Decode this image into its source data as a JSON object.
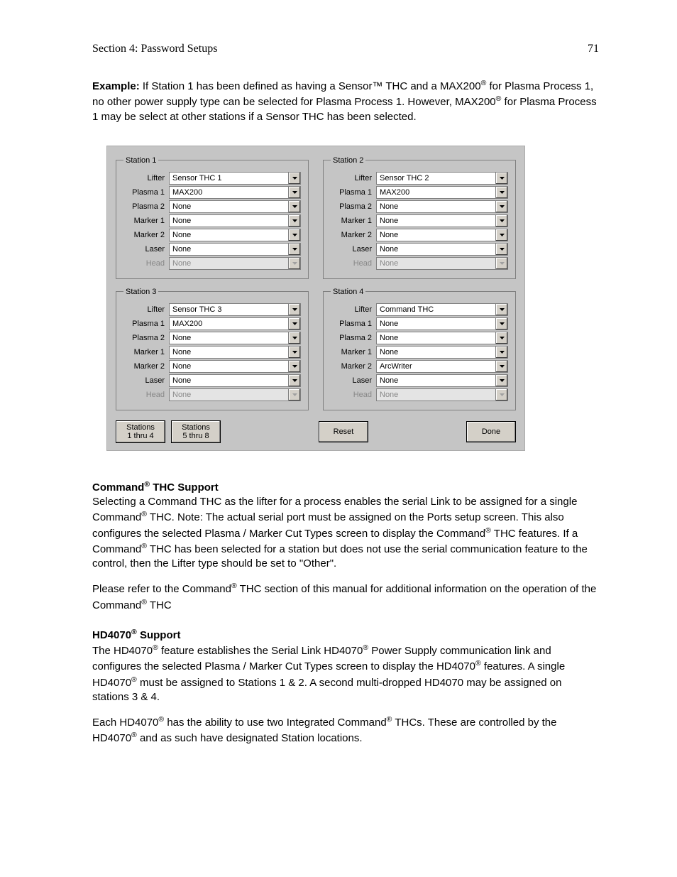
{
  "header": {
    "section": "Section 4: Password Setups",
    "page_number": "71"
  },
  "example": {
    "label": "Example:",
    "text_a": "If Station 1 has been defined as having a Sensor™ THC and a MAX200",
    "text_b": " for Plasma Process 1, no other power supply type can be selected for Plasma Process 1.  However, MAX200",
    "text_c": " for Plasma Process 1 may be select at other stations if a Sensor THC has been selected.",
    "reg": "®"
  },
  "dialog": {
    "field_labels": {
      "lifter": "Lifter",
      "plasma1": "Plasma 1",
      "plasma2": "Plasma 2",
      "marker1": "Marker 1",
      "marker2": "Marker 2",
      "laser": "Laser",
      "head": "Head"
    },
    "stations": [
      {
        "legend": "Station 1",
        "lifter": "Sensor THC 1",
        "plasma1": "MAX200",
        "plasma2": "None",
        "marker1": "None",
        "marker2": "None",
        "laser": "None",
        "head": "None"
      },
      {
        "legend": "Station 2",
        "lifter": "Sensor THC 2",
        "plasma1": "MAX200",
        "plasma2": "None",
        "marker1": "None",
        "marker2": "None",
        "laser": "None",
        "head": "None"
      },
      {
        "legend": "Station 3",
        "lifter": "Sensor THC 3",
        "plasma1": "MAX200",
        "plasma2": "None",
        "marker1": "None",
        "marker2": "None",
        "laser": "None",
        "head": "None"
      },
      {
        "legend": "Station 4",
        "lifter": "Command THC",
        "plasma1": "None",
        "plasma2": "None",
        "marker1": "None",
        "marker2": "ArcWriter",
        "laser": "None",
        "head": "None"
      }
    ],
    "buttons": {
      "stations_1_4_line1": "Stations",
      "stations_1_4_line2": "1 thru 4",
      "stations_5_8_line1": "Stations",
      "stations_5_8_line2": "5 thru 8",
      "reset": "Reset",
      "done": "Done"
    }
  },
  "commandSupport": {
    "title_a": "Command",
    "title_b": " THC Support",
    "p1a": "Selecting a Command THC as the lifter for a process enables the serial Link to be assigned for a single Command",
    "p1b": " THC.  Note: The actual serial port must be assigned on the Ports setup screen. This also configures the selected Plasma / Marker Cut Types screen to display the Command",
    "p1c": " THC features.  If a Command",
    "p1d": " THC has been selected  for a station but does not use the serial communication feature to the control, then the Lifter type should be set to \"Other\".",
    "p2a": "Please refer to the Command",
    "p2b": " THC section of this manual for additional information on the operation of the Command",
    "p2c": " THC",
    "reg": "®"
  },
  "hd4070": {
    "title_a": "HD4070",
    "title_b": " Support",
    "p1a": "The HD4070",
    "p1b": " feature establishes the Serial Link HD4070",
    "p1c": " Power Supply communication link  and configures the selected Plasma / Marker Cut Types screen to display the HD4070",
    "p1d": " features.  A single HD4070",
    "p1e": " must be assigned to Stations 1 & 2.  A second multi-dropped HD4070 may be assigned on stations 3 & 4.",
    "p2a": "Each HD4070",
    "p2b": " has the ability to use two Integrated Command",
    "p2c": " THCs.  These are controlled by the HD4070",
    "p2d": " and as such have designated Station locations.",
    "reg": "®"
  }
}
